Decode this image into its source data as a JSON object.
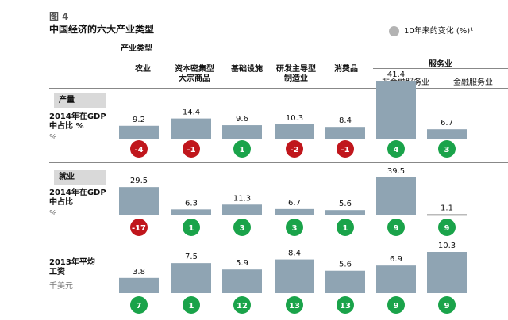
{
  "figure_label": "图 4",
  "title": "中国经济的六大产业类型",
  "legend": {
    "label": "10年来的变化 (%)¹",
    "color": "#b3b3b3"
  },
  "category_type_label": "产业类型",
  "columns": [
    {
      "label_line1": "",
      "label_line2": "农业"
    },
    {
      "label_line1": "资本密集型",
      "label_line2": "大宗商品"
    },
    {
      "label_line1": "",
      "label_line2": "基础设施"
    },
    {
      "label_line1": "研发主导型",
      "label_line2": "制造业"
    },
    {
      "label_line1": "",
      "label_line2": "消费品"
    },
    {
      "label_line1": "",
      "label_line2": "非金融服务业"
    },
    {
      "label_line1": "",
      "label_line2": "金融服务业"
    }
  ],
  "services_group_label": "服务业",
  "rows": [
    {
      "badge": "产量",
      "label_line1": "2014年在GDP",
      "label_line2": "中占比 %",
      "unit": "%"
    },
    {
      "badge": "就业",
      "label_line1": "2014年在GDP",
      "label_line2": "中占比",
      "unit": "%"
    },
    {
      "badge": "",
      "label_line1": "2013年平均",
      "label_line2": "工资",
      "unit": "千美元"
    }
  ],
  "colors": {
    "bar": "#8fa4b3",
    "positive": "#1aa34a",
    "negative": "#c0161c"
  },
  "chart_data": {
    "type": "bar",
    "categories": [
      "农业",
      "大宗商品",
      "基础设施",
      "制造业",
      "消费品",
      "非金融服务业",
      "金融服务业"
    ],
    "series": [
      {
        "name": "2014年在GDP中占比 % (产量)",
        "values": [
          9.2,
          14.4,
          9.6,
          10.3,
          8.4,
          41.4,
          6.7
        ],
        "change": [
          -4,
          -1,
          1,
          -2,
          -1,
          4,
          3
        ]
      },
      {
        "name": "2014年在GDP中占比 (就业)",
        "values": [
          29.5,
          6.3,
          11.3,
          6.7,
          5.6,
          39.5,
          1.1
        ],
        "change": [
          -17,
          1,
          3,
          3,
          1,
          9,
          9
        ]
      },
      {
        "name": "2013年平均工资 (千美元)",
        "values": [
          3.8,
          7.5,
          5.9,
          8.4,
          5.6,
          6.9,
          10.3
        ],
        "change": [
          7,
          1,
          12,
          13,
          13,
          9,
          9
        ]
      }
    ],
    "value_labels": [
      [
        "9.2",
        "14.4",
        "9.6",
        "10.3",
        "8.4",
        "41.4",
        "6.7"
      ],
      [
        "29.5",
        "6.3",
        "11.3",
        "6.7",
        "5.6",
        "39.5",
        "1.1"
      ],
      [
        "3.8",
        "7.5",
        "5.9",
        "8.4",
        "5.6",
        "6.9",
        "10.3"
      ]
    ],
    "change_labels": [
      [
        "-4",
        "-1",
        "1",
        "-2",
        "-1",
        "4",
        "3"
      ],
      [
        "-17",
        "1",
        "3",
        "3",
        "1",
        "9",
        "9"
      ],
      [
        "7",
        "1",
        "12",
        "13",
        "13",
        "9",
        "9"
      ]
    ]
  }
}
